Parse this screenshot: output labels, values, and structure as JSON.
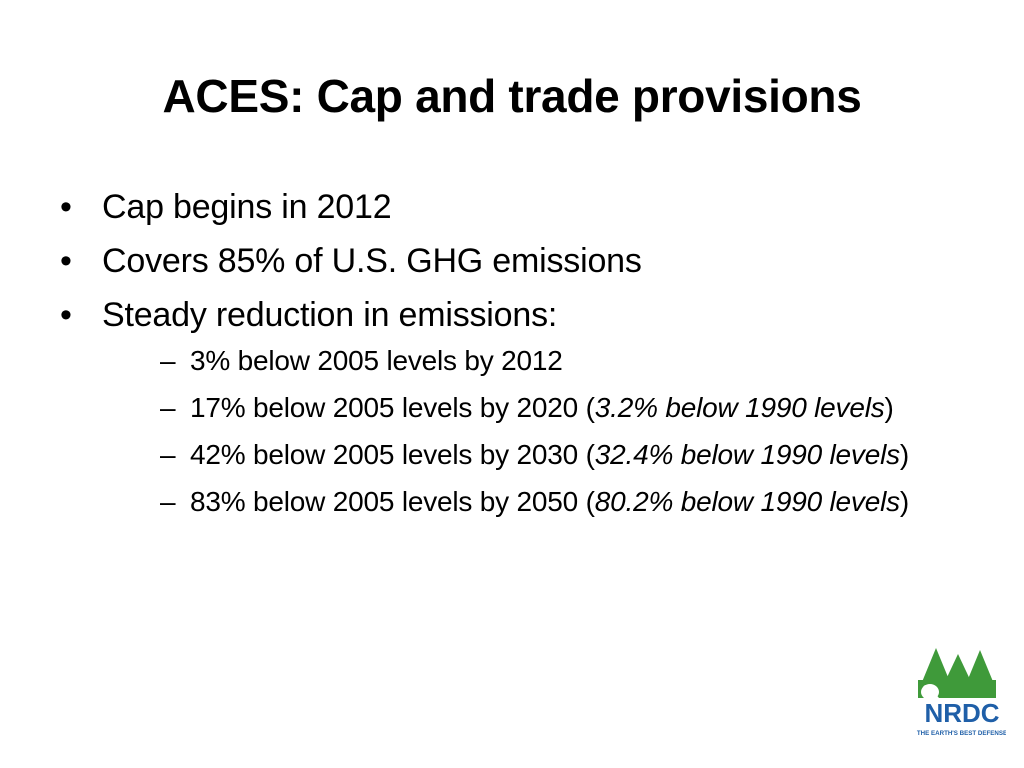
{
  "slide": {
    "title": "ACES: Cap and trade provisions",
    "bullet_glyph": "•",
    "dash_glyph": "–",
    "bullets": [
      {
        "text": "Cap begins in 2012"
      },
      {
        "text": "Covers 85% of U.S. GHG emissions"
      },
      {
        "text": "Steady reduction in emissions:"
      }
    ],
    "subbullets": [
      {
        "main": "3% below 2005 levels by 2012",
        "italic": "",
        "open": "",
        "close": ""
      },
      {
        "main": "17% below 2005 levels by 2020 ",
        "open": "(",
        "italic": "3.2% below 1990 levels",
        "close": ")"
      },
      {
        "main": "42% below 2005 levels by 2030 ",
        "open": "(",
        "italic": "32.4% below 1990 levels",
        "close": ")"
      },
      {
        "main": "83% below 2005 levels by 2050 ",
        "open": "(",
        "italic": "80.2% below 1990 levels",
        "close": ")"
      }
    ]
  },
  "logo": {
    "name": "NRDC",
    "tagline": "The Earth's Best Defense",
    "icon": "nrdc-tree-logo-icon",
    "colors": {
      "green": "#3f9a3a",
      "blue": "#1f5fa8"
    }
  }
}
